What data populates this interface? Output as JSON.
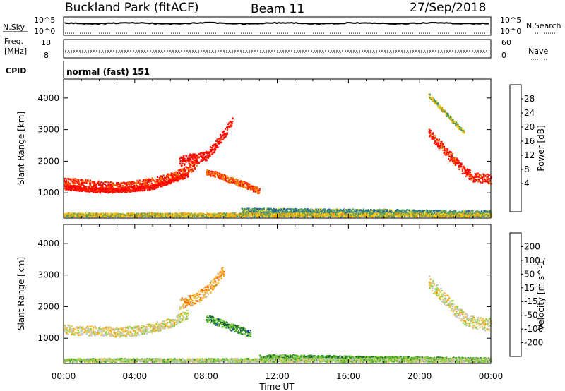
{
  "header": {
    "title": "Buckland Park (fitACF)",
    "beam": "Beam 11",
    "date": "27/Sep/2018"
  },
  "strip_panels": {
    "nsky": {
      "label": "N.Sky",
      "tick_top": "10^5",
      "tick_bottom": "10^0"
    },
    "nsearch": {
      "label": "N.Search",
      "tick_top": "10^5",
      "tick_bottom": "10^0"
    },
    "freq": {
      "label_line1": "Freq.",
      "label_line2": "[MHz]",
      "tick_top": "18",
      "tick_bottom": "8"
    },
    "nave": {
      "label": "Nave",
      "tick_top": "60",
      "tick_bottom": "0"
    },
    "cpid": {
      "label": "CPID",
      "value": "normal (fast) 151"
    }
  },
  "colors": {
    "power": [
      "#0000ff",
      "#1f5aa6",
      "#3c8c6e",
      "#5aa05a",
      "#f0d020",
      "#f5a000",
      "#f07800",
      "#ff2a00",
      "#ff0000"
    ],
    "velocity": [
      "#1a3ca0",
      "#1a6a28",
      "#3caa28",
      "#8cd23c",
      "#c8c8c8",
      "#f0c850",
      "#f0a000",
      "#ff6000",
      "#ff0000"
    ]
  },
  "chart_data": [
    {
      "type": "heatmap",
      "name": "power",
      "ylabel": "Slant Range [km]",
      "ylim": [
        200,
        4600
      ],
      "yticks": [
        "1000",
        "2000",
        "3000",
        "4000"
      ],
      "xlim": [
        0,
        24
      ],
      "colorbar_label": "Power [dB]",
      "colorbar_ticks": [
        "4",
        "8",
        "12",
        "16",
        "20",
        "24",
        "28"
      ],
      "features": [
        {
          "times": [
            0,
            1,
            2,
            3,
            4,
            5,
            6,
            7,
            7.5
          ],
          "ranges": [
            1350,
            1300,
            1250,
            1200,
            1250,
            1350,
            1500,
            1750,
            2000
          ],
          "width": 150,
          "level": 0.85
        },
        {
          "times": [
            0,
            1,
            2,
            3,
            4,
            5,
            6,
            7
          ],
          "ranges": [
            1200,
            1150,
            1100,
            1100,
            1150,
            1200,
            1400,
            1600
          ],
          "width": 80,
          "level": 0.95
        },
        {
          "times": [
            6.5,
            7,
            7.5,
            8,
            8.5,
            9,
            9.5
          ],
          "ranges": [
            2000,
            2100,
            2100,
            2200,
            2500,
            2900,
            3300
          ],
          "width": 150,
          "level": 0.95
        },
        {
          "times": [
            8,
            8.5,
            9,
            9.5,
            10,
            10.5,
            11
          ],
          "ranges": [
            1650,
            1600,
            1500,
            1400,
            1300,
            1200,
            1050
          ],
          "width": 100,
          "level": 0.8
        },
        {
          "times": [
            20.5,
            21,
            21.5,
            22,
            22.5,
            23,
            24
          ],
          "ranges": [
            2900,
            2600,
            2300,
            2000,
            1700,
            1500,
            1450
          ],
          "width": 150,
          "level": 0.9
        },
        {
          "times": [
            20.5,
            21,
            21.5,
            22,
            22.5
          ],
          "ranges": [
            4100,
            3800,
            3500,
            3200,
            2900
          ],
          "width": 60,
          "level": 0.45
        },
        {
          "times": [
            10,
            12,
            14,
            16,
            18,
            20,
            22,
            24
          ],
          "ranges": [
            450,
            450,
            430,
            420,
            420,
            400,
            380,
            370
          ],
          "width": 80,
          "level": 0.3
        },
        {
          "times": [
            0,
            4,
            8,
            12,
            16,
            20,
            24
          ],
          "ranges": [
            320,
            320,
            320,
            320,
            320,
            320,
            320
          ],
          "width": 60,
          "level": 0.5
        }
      ]
    },
    {
      "type": "heatmap",
      "name": "velocity",
      "ylabel": "Slant Range [km]",
      "ylim": [
        200,
        4600
      ],
      "yticks": [
        "1000",
        "2000",
        "3000",
        "4000"
      ],
      "xlabel": "Time UT",
      "xticks": [
        "00:00",
        "04:00",
        "08:00",
        "12:00",
        "16:00",
        "20:00",
        "00:00"
      ],
      "xlim": [
        0,
        24
      ],
      "colorbar_label": "Velocity [m s^-1]",
      "colorbar_ticks": [
        "200",
        "100",
        "50",
        "15",
        "-15",
        "-50",
        "-100",
        "-200"
      ],
      "features": [
        {
          "times": [
            0,
            1,
            2,
            3,
            4,
            5,
            6,
            7
          ],
          "ranges": [
            1300,
            1250,
            1250,
            1200,
            1250,
            1350,
            1500,
            1800
          ],
          "width": 150,
          "level": 0.55
        },
        {
          "times": [
            6.5,
            7,
            7.5,
            8,
            8.5,
            9
          ],
          "ranges": [
            2100,
            2200,
            2300,
            2500,
            2800,
            3200
          ],
          "width": 180,
          "level": 0.7
        },
        {
          "times": [
            8,
            8.5,
            9,
            9.5,
            10,
            10.5
          ],
          "ranges": [
            1650,
            1550,
            1450,
            1350,
            1250,
            1150
          ],
          "width": 120,
          "level": 0.25
        },
        {
          "times": [
            20.5,
            21,
            21.5,
            22,
            22.5,
            23,
            24
          ],
          "ranges": [
            2800,
            2500,
            2200,
            1900,
            1650,
            1500,
            1450
          ],
          "width": 200,
          "level": 0.52
        },
        {
          "times": [
            11,
            13,
            15,
            17,
            19,
            21,
            24
          ],
          "ranges": [
            420,
            420,
            400,
            380,
            380,
            350,
            330
          ],
          "width": 70,
          "level": 0.3
        },
        {
          "times": [
            0,
            4,
            8,
            12,
            16,
            20,
            24
          ],
          "ranges": [
            320,
            320,
            320,
            320,
            320,
            320,
            320
          ],
          "width": 60,
          "level": 0.45
        }
      ]
    }
  ]
}
